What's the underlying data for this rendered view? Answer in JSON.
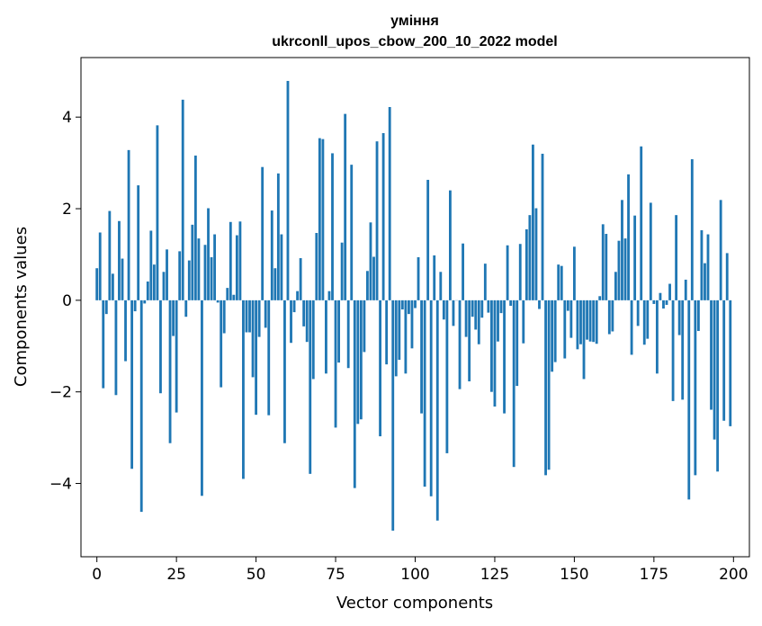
{
  "chart_data": {
    "type": "bar",
    "title_line1": "уміння",
    "title_line2": "ukrconll_upos_cbow_200_10_2022 model",
    "xlabel": "Vector components",
    "ylabel": "Components values",
    "xlim": [
      -5,
      205
    ],
    "ylim": [
      -5.6,
      5.3
    ],
    "xticks": [
      0,
      25,
      50,
      75,
      100,
      125,
      150,
      175,
      200
    ],
    "yticks": [
      -4,
      -2,
      0,
      2,
      4
    ],
    "bar_color": "#1f77b4",
    "legend": "none",
    "grid": false,
    "values": [
      0.7,
      1.48,
      -1.92,
      -0.3,
      1.95,
      0.58,
      -2.07,
      1.73,
      0.91,
      -1.33,
      3.28,
      -3.68,
      -0.24,
      2.51,
      -4.62,
      -0.07,
      0.41,
      1.52,
      0.78,
      3.82,
      -2.03,
      0.62,
      1.11,
      -3.12,
      -0.78,
      -2.45,
      1.07,
      4.38,
      -0.36,
      0.87,
      1.65,
      3.16,
      1.35,
      -4.27,
      1.21,
      2.01,
      0.94,
      1.44,
      -0.05,
      -1.9,
      -0.72,
      0.27,
      1.71,
      0.12,
      1.42,
      1.72,
      -3.9,
      -0.7,
      -0.7,
      -1.68,
      -2.5,
      -0.8,
      2.91,
      -0.6,
      -2.51,
      1.96,
      0.7,
      2.77,
      1.44,
      -3.12,
      4.79,
      -0.93,
      -0.26,
      0.2,
      0.92,
      -0.57,
      -0.91,
      -3.79,
      -1.72,
      1.47,
      3.54,
      3.52,
      -1.6,
      0.2,
      3.21,
      -2.78,
      -1.36,
      1.26,
      4.07,
      -1.48,
      2.96,
      -4.1,
      -2.7,
      -2.6,
      -1.13,
      0.64,
      1.7,
      0.95,
      3.47,
      -2.97,
      3.65,
      -1.4,
      4.22,
      -5.03,
      -1.66,
      -1.3,
      -0.2,
      -1.6,
      -0.3,
      -1.05,
      -0.17,
      0.94,
      -2.47,
      -4.07,
      2.63,
      -4.28,
      0.98,
      -4.81,
      0.62,
      -0.42,
      -3.34,
      2.4,
      -0.56,
      0.0,
      -1.94,
      1.24,
      -0.8,
      -1.77,
      -0.36,
      -0.64,
      -0.96,
      -0.38,
      0.8,
      -0.27,
      -2.0,
      -2.32,
      -0.9,
      -0.28,
      -2.47,
      1.2,
      -0.12,
      -3.64,
      -1.87,
      1.23,
      -0.94,
      1.55,
      1.86,
      3.4,
      2.01,
      -0.19,
      3.2,
      -3.82,
      -3.7,
      -1.56,
      -1.35,
      0.78,
      0.75,
      -1.27,
      -0.23,
      -0.82,
      1.17,
      -1.07,
      -0.96,
      -1.72,
      -0.86,
      -0.9,
      -0.91,
      -0.95,
      0.09,
      1.66,
      1.45,
      -0.74,
      -0.68,
      0.62,
      1.3,
      2.19,
      1.35,
      2.75,
      -1.19,
      1.85,
      -0.56,
      3.36,
      -0.97,
      -0.84,
      2.13,
      -0.08,
      -1.6,
      0.16,
      -0.18,
      -0.1,
      0.36,
      -2.2,
      1.86,
      -0.76,
      -2.17,
      0.45,
      -4.35,
      3.08,
      -3.82,
      -0.67,
      1.53,
      0.81,
      1.44,
      -2.39,
      -3.04,
      -3.74,
      2.19,
      -2.63,
      1.03,
      -2.75
    ]
  }
}
